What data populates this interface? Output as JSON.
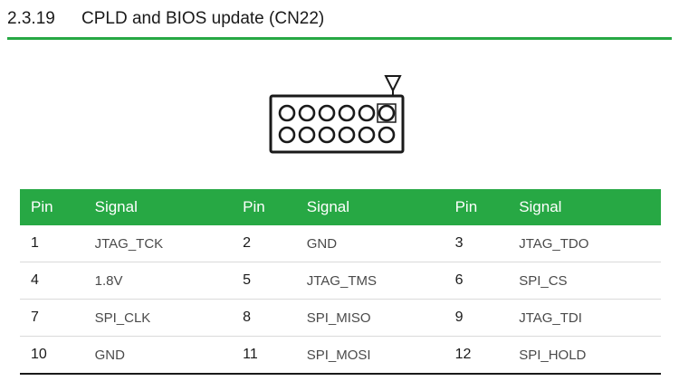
{
  "section": {
    "number": "2.3.19",
    "title": "CPLD and BIOS update (CN22)"
  },
  "connector": {
    "rows": 2,
    "columns": 6,
    "pin1_marker": "triangle"
  },
  "table": {
    "headers": [
      "Pin",
      "Signal",
      "Pin",
      "Signal",
      "Pin",
      "Signal"
    ],
    "rows": [
      {
        "pin_a": "1",
        "signal_a": "JTAG_TCK",
        "pin_b": "2",
        "signal_b": "GND",
        "pin_c": "3",
        "signal_c": "JTAG_TDO"
      },
      {
        "pin_a": "4",
        "signal_a": "1.8V",
        "pin_b": "5",
        "signal_b": "JTAG_TMS",
        "pin_c": "6",
        "signal_c": "SPI_CS"
      },
      {
        "pin_a": "7",
        "signal_a": "SPI_CLK",
        "pin_b": "8",
        "signal_b": "SPI_MISO",
        "pin_c": "9",
        "signal_c": "JTAG_TDI"
      },
      {
        "pin_a": "10",
        "signal_a": "GND",
        "pin_b": "11",
        "signal_b": "SPI_MOSI",
        "pin_c": "12",
        "signal_c": "SPI_HOLD"
      }
    ]
  },
  "colors": {
    "accent": "#27a844",
    "text": "#1a1a1a"
  }
}
